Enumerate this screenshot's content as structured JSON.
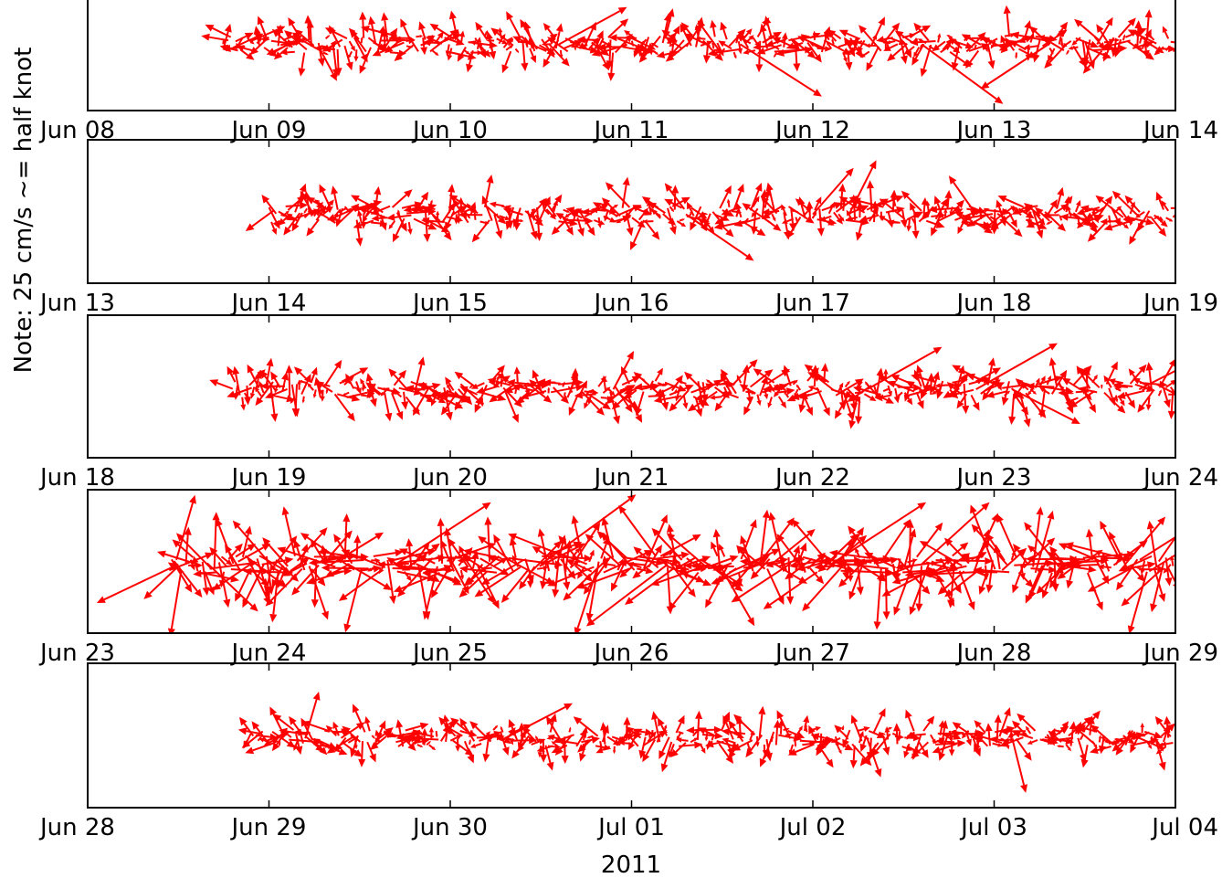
{
  "figure": {
    "ylabel": "Note: 25 cm/s ~= half knot",
    "xlabel": "2011",
    "arrow_color": "#ff0000",
    "axes_color": "#000000",
    "background": "#ffffff"
  },
  "chart_data": [
    {
      "type": "quiver",
      "x_range": [
        "Jun 08",
        "Jun 14"
      ],
      "tick_labels": [
        "Jun 08",
        "Jun 09",
        "Jun 10",
        "Jun 11",
        "Jun 12",
        "Jun 13",
        "Jun 14"
      ],
      "data_start_day": 0.75,
      "mean_arrow_length": 0.35,
      "spread": 0.35,
      "strong_gusts": [
        {
          "day": 3.6,
          "dx": 0.6,
          "dy": -0.7
        },
        {
          "day": 4.6,
          "dx": 0.6,
          "dy": -0.8
        },
        {
          "day": 5.3,
          "dx": -0.5,
          "dy": -0.6
        },
        {
          "day": 2.6,
          "dx": 0.5,
          "dy": 0.5
        }
      ]
    },
    {
      "type": "quiver",
      "x_range": [
        "Jun 13",
        "Jun 19"
      ],
      "tick_labels": [
        "Jun 13",
        "Jun 14",
        "Jun 15",
        "Jun 16",
        "Jun 17",
        "Jun 18",
        "Jun 19"
      ],
      "data_start_day": 1.0,
      "mean_arrow_length": 0.32,
      "spread": 0.3,
      "strong_gusts": [
        {
          "day": 4.0,
          "dx": 0.3,
          "dy": 0.6
        },
        {
          "day": 4.2,
          "dx": 0.2,
          "dy": 0.7
        },
        {
          "day": 4.9,
          "dx": -0.2,
          "dy": 0.5
        },
        {
          "day": 3.3,
          "dx": 0.5,
          "dy": -0.6
        }
      ]
    },
    {
      "type": "quiver",
      "x_range": [
        "Jun 18",
        "Jun 24"
      ],
      "tick_labels": [
        "Jun 18",
        "Jun 19",
        "Jun 20",
        "Jun 21",
        "Jun 22",
        "Jun 23",
        "Jun 24"
      ],
      "data_start_day": 0.8,
      "mean_arrow_length": 0.33,
      "spread": 0.3,
      "strong_gusts": [
        {
          "day": 4.3,
          "dx": 0.55,
          "dy": 0.55
        },
        {
          "day": 4.9,
          "dx": 0.6,
          "dy": 0.6
        },
        {
          "day": 5.1,
          "dx": 0.5,
          "dy": -0.45
        },
        {
          "day": 5.8,
          "dx": 0.5,
          "dy": 0.45
        },
        {
          "day": 2.9,
          "dx": 0.15,
          "dy": 0.5
        }
      ]
    },
    {
      "type": "quiver",
      "x_range": [
        "Jun 23",
        "Jun 29"
      ],
      "tick_labels": [
        "Jun 23",
        "Jun 24",
        "Jun 25",
        "Jun 26",
        "Jun 27",
        "Jun 28",
        "Jun 29"
      ],
      "data_start_day": 0.45,
      "mean_arrow_length": 0.6,
      "spread": 0.45,
      "strong_gusts": [
        {
          "day": 1.7,
          "dx": 0.7,
          "dy": 0.8
        },
        {
          "day": 2.5,
          "dx": 0.7,
          "dy": 0.9
        },
        {
          "day": 3.2,
          "dx": -0.6,
          "dy": -0.8
        },
        {
          "day": 4.1,
          "dx": 0.7,
          "dy": 0.8
        },
        {
          "day": 0.5,
          "dx": -0.6,
          "dy": -0.5
        },
        {
          "day": 4.6,
          "dx": 0.5,
          "dy": 0.8
        }
      ]
    },
    {
      "type": "quiver",
      "x_range": [
        "Jun 28",
        "Jul 04"
      ],
      "tick_labels": [
        "Jun 28",
        "Jun 29",
        "Jun 30",
        "Jul 01",
        "Jul 02",
        "Jul 03",
        "Jul 04"
      ],
      "data_start_day": 0.9,
      "mean_arrow_length": 0.3,
      "spread": 0.3,
      "strong_gusts": [
        {
          "day": 2.3,
          "dx": 0.5,
          "dy": 0.45
        },
        {
          "day": 1.2,
          "dx": 0.1,
          "dy": 0.6
        },
        {
          "day": 4.3,
          "dx": 0.1,
          "dy": -0.5
        },
        {
          "day": 5.1,
          "dx": 0.1,
          "dy": -0.7
        }
      ]
    }
  ]
}
